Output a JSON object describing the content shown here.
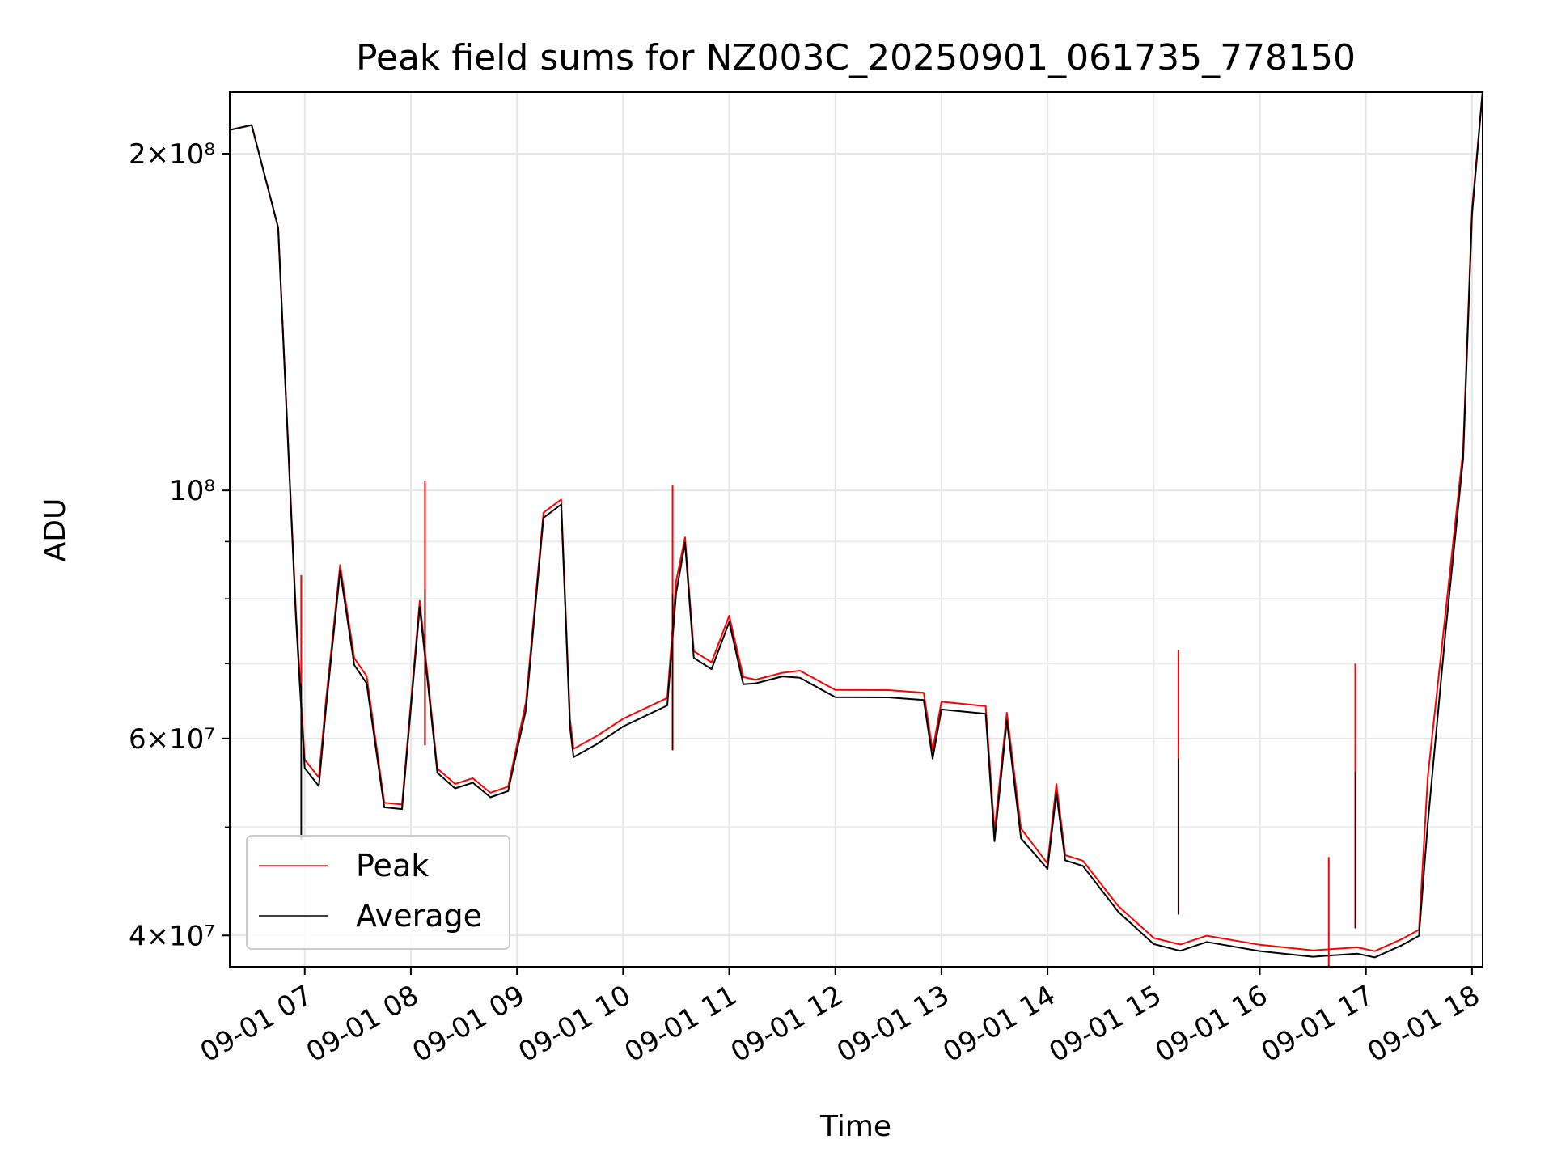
{
  "chart_data": {
    "type": "line",
    "title": "Peak field sums for NZ003C_20250901_061735_778150",
    "xlabel": "Time",
    "ylabel": "ADU",
    "y_scale": "log",
    "ylim": [
      37500000,
      227000000
    ],
    "xlim": [
      "2025-09-01 06:17:35",
      "2025-09-01 18:06:00"
    ],
    "x_ticks": [
      "09-01 07",
      "09-01 08",
      "09-01 09",
      "09-01 10",
      "09-01 11",
      "09-01 12",
      "09-01 13",
      "09-01 14",
      "09-01 15",
      "09-01 16",
      "09-01 17",
      "09-01 18"
    ],
    "y_ticks_major": [
      {
        "value": 40000000,
        "label": "4×10⁷"
      },
      {
        "value": 60000000,
        "label": "6×10⁷"
      },
      {
        "value": 100000000,
        "label": "10⁸"
      },
      {
        "value": 200000000,
        "label": "2×10⁸"
      }
    ],
    "y_ticks_minor": [
      50000000,
      70000000,
      80000000,
      90000000,
      300000000
    ],
    "grid": true,
    "legend_position": "lower-left",
    "colors": {
      "peak": "#ff0000",
      "average": "#000000"
    },
    "series": [
      {
        "name": "Peak",
        "x": [
          "2025-09-01 06:17:35",
          "2025-09-01 06:30:00",
          "2025-09-01 06:45:00",
          "2025-09-01 06:55:00",
          "2025-09-01 07:00:00",
          "2025-09-01 07:08:00",
          "2025-09-01 07:12:00",
          "2025-09-01 07:20:00",
          "2025-09-01 07:28:00",
          "2025-09-01 07:35:00",
          "2025-09-01 07:45:00",
          "2025-09-01 07:55:00",
          "2025-09-01 08:05:00",
          "2025-09-01 08:15:00",
          "2025-09-01 08:25:00",
          "2025-09-01 08:35:00",
          "2025-09-01 08:45:00",
          "2025-09-01 08:55:00",
          "2025-09-01 09:05:00",
          "2025-09-01 09:15:00",
          "2025-09-01 09:25:00",
          "2025-09-01 09:30:00",
          "2025-09-01 09:32:00",
          "2025-09-01 09:45:00",
          "2025-09-01 10:00:00",
          "2025-09-01 10:25:00",
          "2025-09-01 10:30:00",
          "2025-09-01 10:35:00",
          "2025-09-01 10:40:00",
          "2025-09-01 10:50:00",
          "2025-09-01 11:00:00",
          "2025-09-01 11:08:00",
          "2025-09-01 11:15:00",
          "2025-09-01 11:30:00",
          "2025-09-01 11:40:00",
          "2025-09-01 12:00:00",
          "2025-09-01 12:30:00",
          "2025-09-01 12:50:00",
          "2025-09-01 12:55:00",
          "2025-09-01 13:00:00",
          "2025-09-01 13:25:00",
          "2025-09-01 13:30:00",
          "2025-09-01 13:37:00",
          "2025-09-01 13:45:00",
          "2025-09-01 14:00:00",
          "2025-09-01 14:05:00",
          "2025-09-01 14:10:00",
          "2025-09-01 14:20:00",
          "2025-09-01 14:40:00",
          "2025-09-01 15:00:00",
          "2025-09-01 15:15:00",
          "2025-09-01 15:30:00",
          "2025-09-01 16:00:00",
          "2025-09-01 16:30:00",
          "2025-09-01 16:55:00",
          "2025-09-01 17:05:00",
          "2025-09-01 17:20:00",
          "2025-09-01 17:30:00",
          "2025-09-01 17:35:00",
          "2025-09-01 17:45:00",
          "2025-09-01 17:55:00",
          "2025-09-01 18:00:00",
          "2025-09-01 18:06:00"
        ],
        "values": [
          210000000,
          210000000,
          170000000,
          78000000,
          58000000,
          56000000,
          65000000,
          85000000,
          70000000,
          68000000,
          53000000,
          53000000,
          80000000,
          56000000,
          54000000,
          55000000,
          54000000,
          55000000,
          65000000,
          95000000,
          97000000,
          62000000,
          59000000,
          61000000,
          63000000,
          65000000,
          82000000,
          90000000,
          72000000,
          71000000,
          78000000,
          68000000,
          67000000,
          68000000,
          69000000,
          67000000,
          67000000,
          66000000,
          58000000,
          64000000,
          64000000,
          50000000,
          64000000,
          50000000,
          46000000,
          54000000,
          47000000,
          47000000,
          43000000,
          40000000,
          39000000,
          39500000,
          39000000,
          39000000,
          39500000,
          39000000,
          39500000,
          40000000,
          55000000,
          78000000,
          110000000,
          180000000,
          227000000
        ]
      },
      {
        "name": "Average",
        "x": [
          "2025-09-01 06:17:35",
          "2025-09-01 06:30:00",
          "2025-09-01 06:45:00",
          "2025-09-01 06:55:00",
          "2025-09-01 07:00:00",
          "2025-09-01 07:08:00",
          "2025-09-01 07:12:00",
          "2025-09-01 07:20:00",
          "2025-09-01 07:28:00",
          "2025-09-01 07:35:00",
          "2025-09-01 07:45:00",
          "2025-09-01 07:55:00",
          "2025-09-01 08:05:00",
          "2025-09-01 08:15:00",
          "2025-09-01 08:25:00",
          "2025-09-01 08:35:00",
          "2025-09-01 08:45:00",
          "2025-09-01 08:55:00",
          "2025-09-01 09:05:00",
          "2025-09-01 09:15:00",
          "2025-09-01 09:25:00",
          "2025-09-01 09:30:00",
          "2025-09-01 09:32:00",
          "2025-09-01 09:45:00",
          "2025-09-01 10:00:00",
          "2025-09-01 10:25:00",
          "2025-09-01 10:30:00",
          "2025-09-01 10:35:00",
          "2025-09-01 10:40:00",
          "2025-09-01 10:50:00",
          "2025-09-01 11:00:00",
          "2025-09-01 11:08:00",
          "2025-09-01 11:15:00",
          "2025-09-01 11:30:00",
          "2025-09-01 11:40:00",
          "2025-09-01 12:00:00",
          "2025-09-01 12:30:00",
          "2025-09-01 12:50:00",
          "2025-09-01 12:55:00",
          "2025-09-01 13:00:00",
          "2025-09-01 13:25:00",
          "2025-09-01 13:30:00",
          "2025-09-01 13:37:00",
          "2025-09-01 13:45:00",
          "2025-09-01 14:00:00",
          "2025-09-01 14:05:00",
          "2025-09-01 14:10:00",
          "2025-09-01 14:20:00",
          "2025-09-01 14:40:00",
          "2025-09-01 15:00:00",
          "2025-09-01 15:15:00",
          "2025-09-01 15:30:00",
          "2025-09-01 16:00:00",
          "2025-09-01 16:30:00",
          "2025-09-01 16:55:00",
          "2025-09-01 17:05:00",
          "2025-09-01 17:20:00",
          "2025-09-01 17:30:00",
          "2025-09-01 17:35:00",
          "2025-09-01 17:45:00",
          "2025-09-01 17:55:00",
          "2025-09-01 18:00:00",
          "2025-09-01 18:06:00"
        ],
        "values": [
          210000000,
          210000000,
          170000000,
          77000000,
          57000000,
          55000000,
          64000000,
          84000000,
          69000000,
          67000000,
          52500000,
          52500000,
          79000000,
          55500000,
          53500000,
          54500000,
          53500000,
          54500000,
          64000000,
          94000000,
          96000000,
          61000000,
          58000000,
          60000000,
          62000000,
          64000000,
          80000000,
          89000000,
          71000000,
          70000000,
          77000000,
          67000000,
          66500000,
          67500000,
          68000000,
          66000000,
          66000000,
          65000000,
          57000000,
          63000000,
          63000000,
          49000000,
          63000000,
          49000000,
          45500000,
          53000000,
          46500000,
          46500000,
          42500000,
          39500000,
          38500000,
          39000000,
          38500000,
          38500000,
          39000000,
          38500000,
          39000000,
          39500000,
          50000000,
          75000000,
          108000000,
          178000000,
          227000000
        ]
      }
    ],
    "spikes": [
      {
        "series": "Peak",
        "x": "2025-09-01 06:58:00",
        "value": 84000000
      },
      {
        "series": "Peak",
        "x": "2025-09-01 08:08:00",
        "value": 102000000
      },
      {
        "series": "Peak",
        "x": "2025-09-01 10:28:00",
        "value": 101000000
      },
      {
        "series": "Peak",
        "x": "2025-09-01 15:14:00",
        "value": 72000000
      },
      {
        "series": "Peak",
        "x": "2025-09-01 16:39:00",
        "value": 47000000
      },
      {
        "series": "Peak",
        "x": "2025-09-01 16:54:00",
        "value": 70000000
      }
    ]
  }
}
